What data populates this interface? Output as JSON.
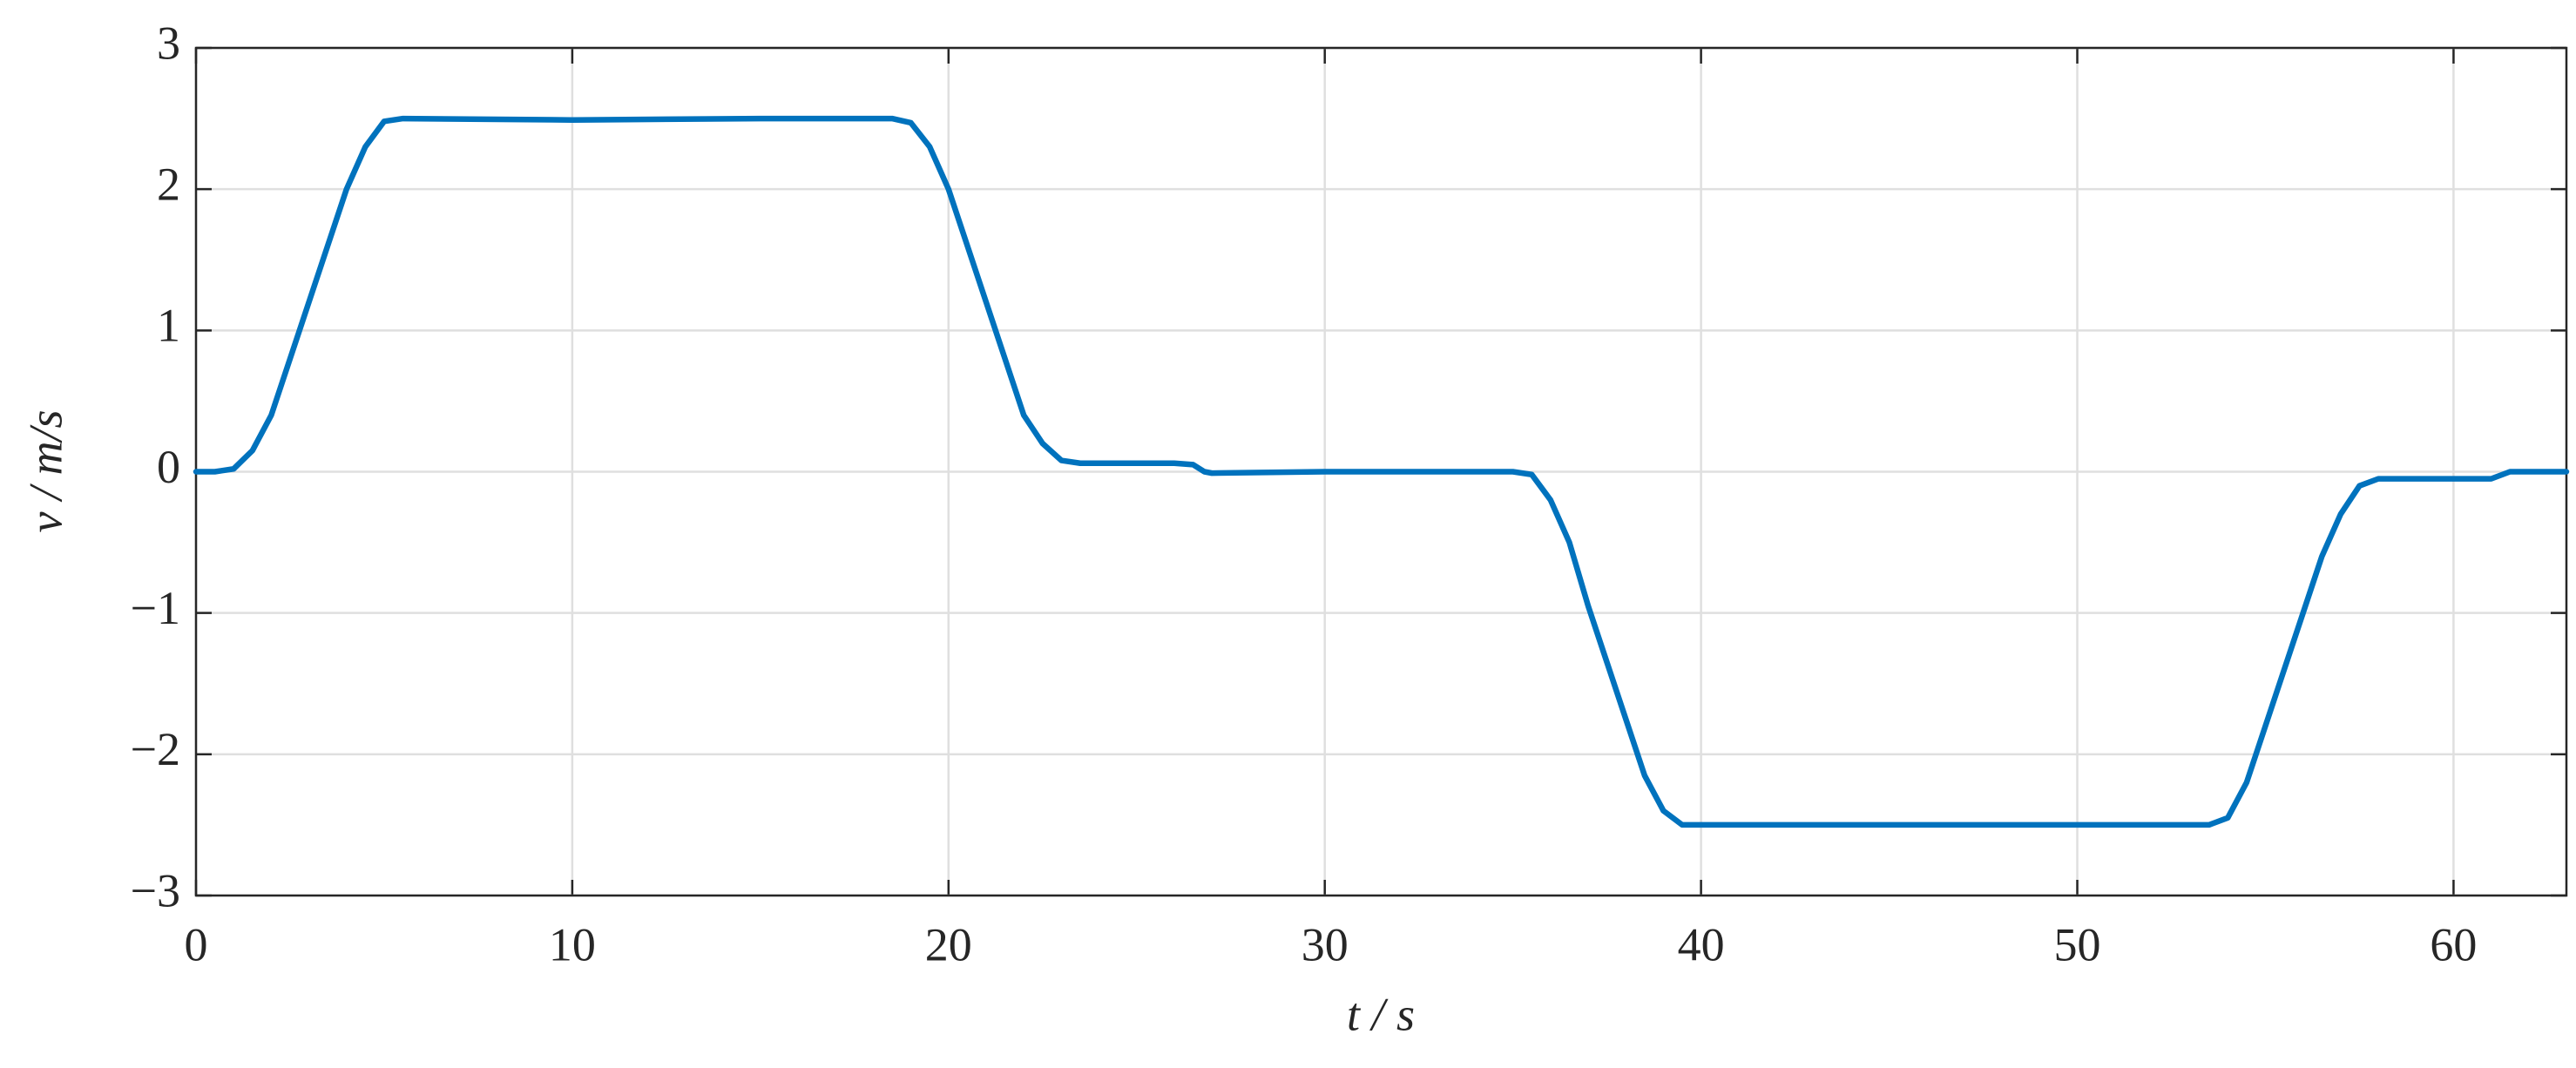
{
  "chart_data": {
    "type": "line",
    "xlabel": "t / s",
    "ylabel": "v / m/s",
    "color": "#0072bd",
    "grid": true,
    "xlim": [
      0,
      63
    ],
    "ylim": [
      -3,
      3
    ],
    "xticks": [
      0,
      10,
      20,
      30,
      40,
      50,
      60
    ],
    "yticks": [
      {
        "value": -3,
        "label": "−3"
      },
      {
        "value": -2,
        "label": "−2"
      },
      {
        "value": -1,
        "label": "−1"
      },
      0,
      1,
      2,
      3
    ],
    "x": [
      0,
      0.5,
      1,
      1.5,
      2,
      2.5,
      3,
      3.5,
      4,
      4.5,
      5,
      5.5,
      10,
      15,
      18.5,
      19,
      19.5,
      20,
      20.5,
      21,
      21.5,
      22,
      22.5,
      23,
      23.5,
      26,
      26.5,
      26.8,
      27,
      30,
      35,
      35.5,
      36,
      36.5,
      37,
      37.5,
      38,
      38.5,
      39,
      39.5,
      40,
      45,
      50,
      53.5,
      54,
      54.5,
      55,
      55.5,
      56,
      56.5,
      57,
      57.5,
      58,
      61,
      61.3,
      61.5,
      63
    ],
    "values": [
      0,
      0,
      0.02,
      0.15,
      0.4,
      0.8,
      1.2,
      1.6,
      2.0,
      2.3,
      2.48,
      2.5,
      2.49,
      2.5,
      2.5,
      2.47,
      2.3,
      2.0,
      1.6,
      1.2,
      0.8,
      0.4,
      0.2,
      0.08,
      0.06,
      0.06,
      0.05,
      0.0,
      -0.01,
      0,
      0,
      -0.02,
      -0.2,
      -0.5,
      -0.95,
      -1.35,
      -1.75,
      -2.15,
      -2.4,
      -2.5,
      -2.5,
      -2.5,
      -2.5,
      -2.5,
      -2.45,
      -2.2,
      -1.8,
      -1.4,
      -1.0,
      -0.6,
      -0.3,
      -0.1,
      -0.05,
      -0.05,
      -0.02,
      0,
      0
    ]
  }
}
